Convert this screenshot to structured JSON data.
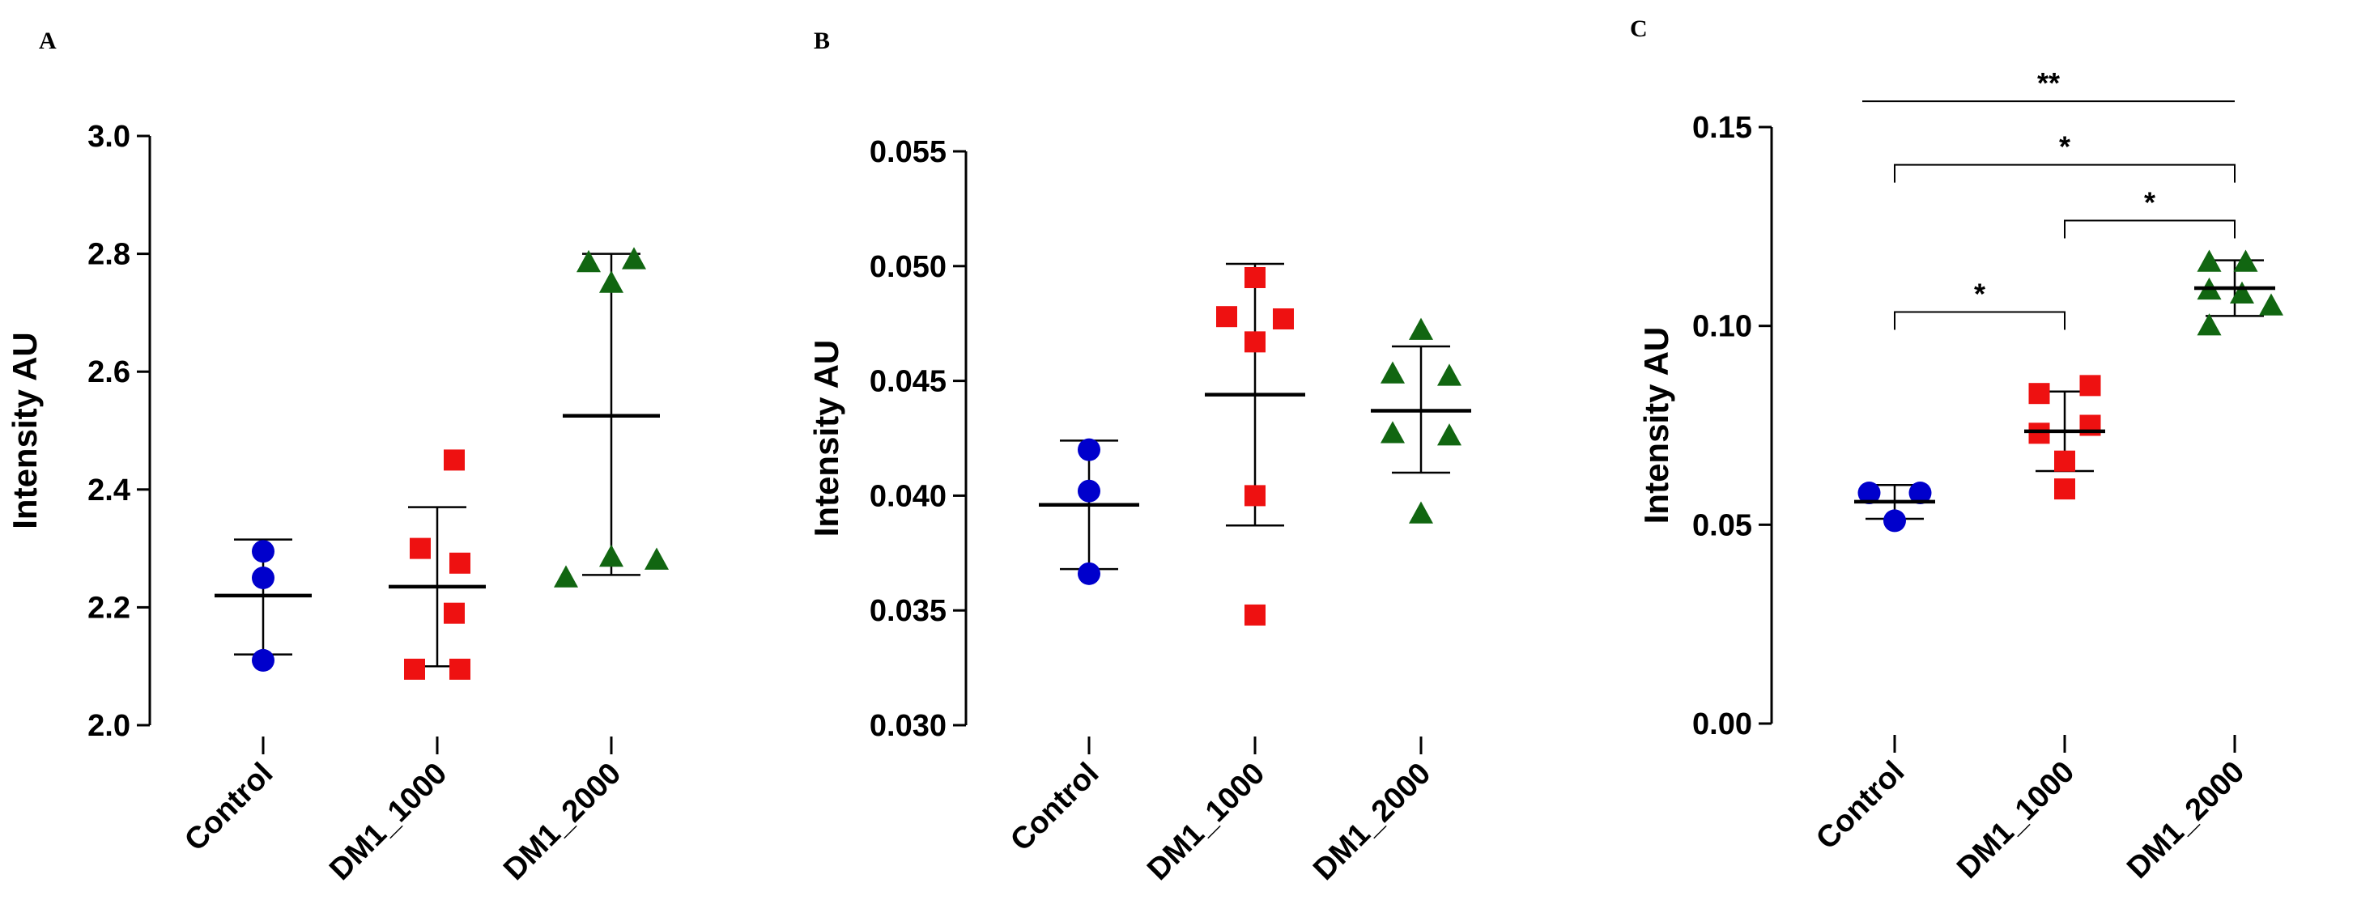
{
  "chart_data": [
    {
      "panel": "A",
      "type": "scatter",
      "title": "",
      "xlabel": "",
      "ylabel": "Intensity AU",
      "ylim": [
        2.0,
        3.0
      ],
      "yticks": [
        2.0,
        2.2,
        2.4,
        2.6,
        2.8,
        3.0
      ],
      "ytick_labels": [
        "2.0",
        "2.2",
        "2.4",
        "2.6",
        "2.8",
        "3.0"
      ],
      "categories": [
        "Control",
        "DM1_1000",
        "DM1_2000"
      ],
      "series": [
        {
          "name": "Control",
          "marker": "circle",
          "color": "#0000cc",
          "points": [
            {
              "dx": 0,
              "y": 2.295
            },
            {
              "dx": 0,
              "y": 2.25
            },
            {
              "dx": 0,
              "y": 2.11
            }
          ],
          "mean": 2.22,
          "err_low": 2.12,
          "err_high": 2.315
        },
        {
          "name": "DM1_1000",
          "marker": "square",
          "color": "#ee1111",
          "points": [
            {
              "dx": 0.3,
              "y": 2.45
            },
            {
              "dx": -0.3,
              "y": 2.3
            },
            {
              "dx": 0.4,
              "y": 2.275
            },
            {
              "dx": 0.3,
              "y": 2.19
            },
            {
              "dx": -0.4,
              "y": 2.095
            },
            {
              "dx": 0.4,
              "y": 2.095
            }
          ],
          "mean": 2.235,
          "err_low": 2.1,
          "err_high": 2.37
        },
        {
          "name": "DM1_2000",
          "marker": "triangle",
          "color": "#116611",
          "points": [
            {
              "dx": -0.4,
              "y": 2.785
            },
            {
              "dx": 0.4,
              "y": 2.79
            },
            {
              "dx": 0,
              "y": 2.75
            },
            {
              "dx": -0.8,
              "y": 2.25
            },
            {
              "dx": 0,
              "y": 2.285
            },
            {
              "dx": 0.8,
              "y": 2.28
            }
          ],
          "mean": 2.525,
          "err_low": 2.255,
          "err_high": 2.8
        }
      ],
      "significance": []
    },
    {
      "panel": "B",
      "type": "scatter",
      "title": "",
      "xlabel": "",
      "ylabel": "Intensity AU",
      "ylim": [
        0.03,
        0.055
      ],
      "yticks": [
        0.03,
        0.035,
        0.04,
        0.045,
        0.05,
        0.055
      ],
      "ytick_labels": [
        "0.030",
        "0.035",
        "0.040",
        "0.045",
        "0.050",
        "0.055"
      ],
      "categories": [
        "Control",
        "DM1_1000",
        "DM1_2000"
      ],
      "series": [
        {
          "name": "Control",
          "marker": "circle",
          "color": "#0000cc",
          "points": [
            {
              "dx": 0,
              "y": 0.042
            },
            {
              "dx": 0,
              "y": 0.0402
            },
            {
              "dx": 0,
              "y": 0.0366
            }
          ],
          "mean": 0.0396,
          "err_low": 0.0368,
          "err_high": 0.0424
        },
        {
          "name": "DM1_1000",
          "marker": "square",
          "color": "#ee1111",
          "points": [
            {
              "dx": 0,
              "y": 0.0495
            },
            {
              "dx": -0.5,
              "y": 0.0478
            },
            {
              "dx": 0.5,
              "y": 0.0477
            },
            {
              "dx": 0,
              "y": 0.0467
            },
            {
              "dx": 0,
              "y": 0.04
            },
            {
              "dx": 0,
              "y": 0.0348
            }
          ],
          "mean": 0.0444,
          "err_low": 0.0387,
          "err_high": 0.0501
        },
        {
          "name": "DM1_2000",
          "marker": "triangle",
          "color": "#116611",
          "points": [
            {
              "dx": 0,
              "y": 0.0472
            },
            {
              "dx": -0.5,
              "y": 0.0453
            },
            {
              "dx": 0.5,
              "y": 0.0452
            },
            {
              "dx": -0.5,
              "y": 0.0427
            },
            {
              "dx": 0.5,
              "y": 0.0426
            },
            {
              "dx": 0,
              "y": 0.0392
            }
          ],
          "mean": 0.0437,
          "err_low": 0.041,
          "err_high": 0.0465
        }
      ],
      "significance": []
    },
    {
      "panel": "C",
      "type": "scatter",
      "title": "",
      "xlabel": "",
      "ylabel": "Intensity AU",
      "ylim": [
        0.0,
        0.15
      ],
      "yticks": [
        0.0,
        0.05,
        0.1,
        0.15
      ],
      "ytick_labels": [
        "0.00",
        "0.05",
        "0.10",
        "0.15"
      ],
      "categories": [
        "Control",
        "DM1_1000",
        "DM1_2000"
      ],
      "series": [
        {
          "name": "Control",
          "marker": "circle",
          "color": "#0000cc",
          "points": [
            {
              "dx": -0.7,
              "y": 0.058
            },
            {
              "dx": 0.7,
              "y": 0.058
            },
            {
              "dx": 0,
              "y": 0.051
            }
          ],
          "mean": 0.0558,
          "err_low": 0.0515,
          "err_high": 0.06
        },
        {
          "name": "DM1_1000",
          "marker": "square",
          "color": "#ee1111",
          "points": [
            {
              "dx": -0.7,
              "y": 0.083
            },
            {
              "dx": 0.7,
              "y": 0.085
            },
            {
              "dx": -0.7,
              "y": 0.073
            },
            {
              "dx": 0.7,
              "y": 0.075
            },
            {
              "dx": 0,
              "y": 0.066
            },
            {
              "dx": 0,
              "y": 0.059
            }
          ],
          "mean": 0.0735,
          "err_low": 0.0635,
          "err_high": 0.0835
        },
        {
          "name": "DM1_2000",
          "marker": "triangle",
          "color": "#116611",
          "points": [
            {
              "dx": -0.7,
              "y": 0.116
            },
            {
              "dx": 0.3,
              "y": 0.116
            },
            {
              "dx": -0.7,
              "y": 0.109
            },
            {
              "dx": 0.2,
              "y": 0.108
            },
            {
              "dx": -0.7,
              "y": 0.1
            },
            {
              "dx": 1.0,
              "y": 0.105
            }
          ],
          "mean": 0.1095,
          "err_low": 0.1025,
          "err_high": 0.1165
        }
      ],
      "significance": [
        {
          "from": 0,
          "to": 2,
          "label": "**",
          "y": 0.1565
        },
        {
          "from": 0,
          "to": 2,
          "label": "*",
          "y": 0.1405
        },
        {
          "from": 1,
          "to": 2,
          "label": "*",
          "y": 0.1265
        },
        {
          "from": 0,
          "to": 1,
          "label": "*",
          "y": 0.1035
        }
      ]
    }
  ]
}
